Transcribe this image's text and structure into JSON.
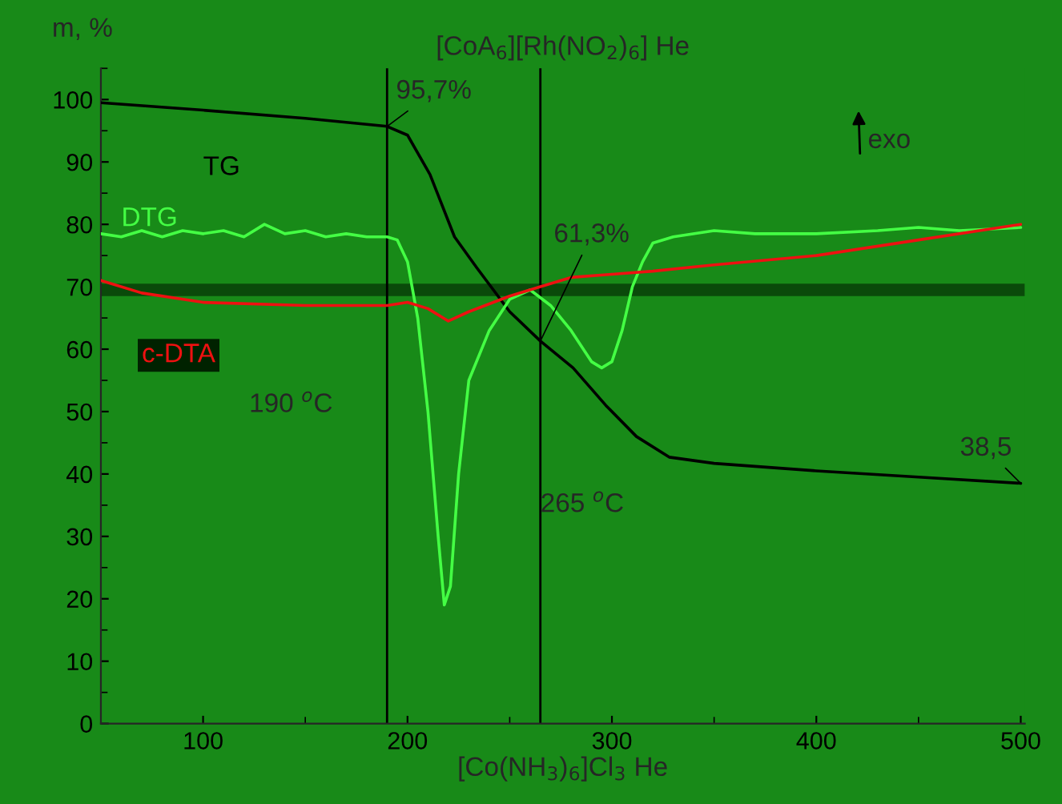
{
  "chart_data": {
    "type": "line",
    "title": "[CoA$_{6}$][Rh(NO$_{2}$)$_{6}$] He",
    "xlabel": "[Co(NH$_{3}$)$_{6}$]Cl$_{3}$ He",
    "ylabel": "m, %",
    "xlim": [
      50,
      502
    ],
    "xticks": [
      100,
      200,
      300,
      400,
      500
    ],
    "ylim": [
      0,
      105
    ],
    "yticks": [
      0,
      10,
      20,
      30,
      40,
      50,
      60,
      70,
      80,
      90,
      100
    ],
    "series": [
      {
        "name": "TG",
        "color": "#000000",
        "x": [
          50,
          100,
          150,
          190,
          200,
          211,
          223,
          234,
          250,
          265,
          281,
          297,
          312,
          328,
          350,
          400,
          450,
          500
        ],
        "values": [
          99.5,
          98.3,
          97,
          95.7,
          94.3,
          88,
          78,
          73,
          66,
          61.3,
          57,
          51,
          46,
          42.7,
          41.7,
          40.5,
          39.5,
          38.5
        ]
      },
      {
        "name": "DTG",
        "color": "#44ff44",
        "x": [
          50,
          60,
          70,
          80,
          90,
          100,
          110,
          120,
          130,
          140,
          150,
          160,
          170,
          180,
          190,
          195,
          200,
          205,
          210,
          215,
          218,
          221,
          225,
          230,
          240,
          250,
          260,
          270,
          280,
          290,
          295,
          300,
          305,
          310,
          315,
          320,
          330,
          350,
          370,
          400,
          430,
          450,
          470,
          500
        ],
        "values": [
          78.5,
          78,
          79,
          78,
          79,
          78.5,
          79,
          78,
          80,
          78.5,
          79,
          78,
          78.5,
          78,
          78,
          77.5,
          74,
          65,
          50,
          30,
          19,
          22,
          40,
          55,
          63,
          68,
          69.5,
          67,
          63,
          58,
          57,
          58,
          63,
          70,
          74,
          77,
          78,
          79,
          78.5,
          78.5,
          79,
          79.5,
          79,
          79.5
        ]
      },
      {
        "name": "c-DTA",
        "color": "#ee1111",
        "x": [
          50,
          70,
          100,
          150,
          190,
          200,
          210,
          220,
          230,
          250,
          265,
          280,
          300,
          320,
          350,
          400,
          450,
          500
        ],
        "values": [
          71,
          69,
          67.5,
          67,
          67,
          67.5,
          66.5,
          64.5,
          66,
          68.5,
          70,
          71.5,
          72,
          72.5,
          73.5,
          75,
          77.5,
          80
        ]
      }
    ],
    "ref_lines": [
      {
        "axis": "x",
        "value": 190,
        "label": "190 $^{o}$C",
        "color": "#000000"
      },
      {
        "axis": "x",
        "value": 265,
        "label": "265 $^{o}$C",
        "color": "#000000"
      }
    ],
    "bands": [
      {
        "axis": "y",
        "from": 68.5,
        "to": 70.5,
        "color": "#0a4a0a"
      }
    ],
    "annotations": [
      {
        "text": "95,7%",
        "x": 190,
        "y": 95.7
      },
      {
        "text": "61,3%",
        "x": 265,
        "y": 61.3
      },
      {
        "text": "38,5",
        "x": 500,
        "y": 38.5
      },
      "exo"
    ],
    "marker": "none",
    "line_style": "solid",
    "grid": false,
    "legend": false
  }
}
